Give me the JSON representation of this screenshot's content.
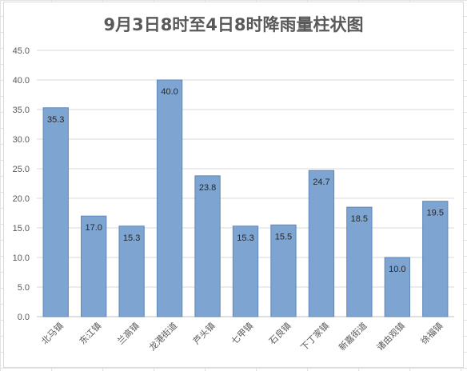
{
  "chart_data": {
    "type": "bar",
    "title": "9月3日8时至4日8时降雨量柱状图",
    "categories": [
      "北马镇",
      "东江镇",
      "兰高镇",
      "龙港街道",
      "芦头镇",
      "七甲镇",
      "石良镇",
      "下丁家镇",
      "新嘉街道",
      "诸由观镇",
      "徐福镇"
    ],
    "values": [
      35.3,
      17.0,
      15.3,
      40.0,
      23.8,
      15.3,
      15.5,
      24.7,
      18.5,
      10.0,
      19.5
    ],
    "value_labels": [
      "35.3",
      "17.0",
      "15.3",
      "40.0",
      "23.8",
      "15.3",
      "15.5",
      "24.7",
      "18.5",
      "10.0",
      "19.5"
    ],
    "y_ticks": [
      "0.0",
      "5.0",
      "10.0",
      "15.0",
      "20.0",
      "25.0",
      "30.0",
      "35.0",
      "40.0",
      "45.0"
    ],
    "ylim": [
      0,
      45
    ],
    "ystep": 5,
    "grid": true,
    "bar_color": "#7ea4d2",
    "bar_edge_color": "#5f87ba"
  }
}
